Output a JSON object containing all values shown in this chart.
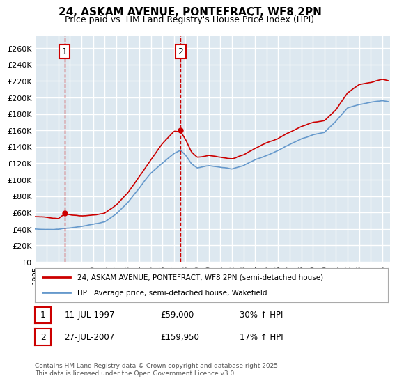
{
  "title_line1": "24, ASKAM AVENUE, PONTEFRACT, WF8 2PN",
  "title_line2": "Price paid vs. HM Land Registry's House Price Index (HPI)",
  "ylabel_ticks": [
    0,
    20000,
    40000,
    60000,
    80000,
    100000,
    120000,
    140000,
    160000,
    180000,
    200000,
    220000,
    240000,
    260000
  ],
  "x_start_year": 1995,
  "x_end_year": 2025,
  "purchase1_date": 1997.54,
  "purchase1_price": 59000,
  "purchase2_date": 2007.57,
  "purchase2_price": 159950,
  "legend_property": "24, ASKAM AVENUE, PONTEFRACT, WF8 2PN (semi-detached house)",
  "legend_hpi": "HPI: Average price, semi-detached house, Wakefield",
  "label1_date": "11-JUL-1997",
  "label1_price": "£59,000",
  "label1_hpi": "30% ↑ HPI",
  "label2_date": "27-JUL-2007",
  "label2_price": "£159,950",
  "label2_hpi": "17% ↑ HPI",
  "copyright_text": "Contains HM Land Registry data © Crown copyright and database right 2025.\nThis data is licensed under the Open Government Licence v3.0.",
  "property_line_color": "#cc0000",
  "hpi_line_color": "#6699cc",
  "background_color": "#dde8f0",
  "grid_color": "#ffffff",
  "vline_color": "#cc0000",
  "box_border_color": "#cc0000"
}
